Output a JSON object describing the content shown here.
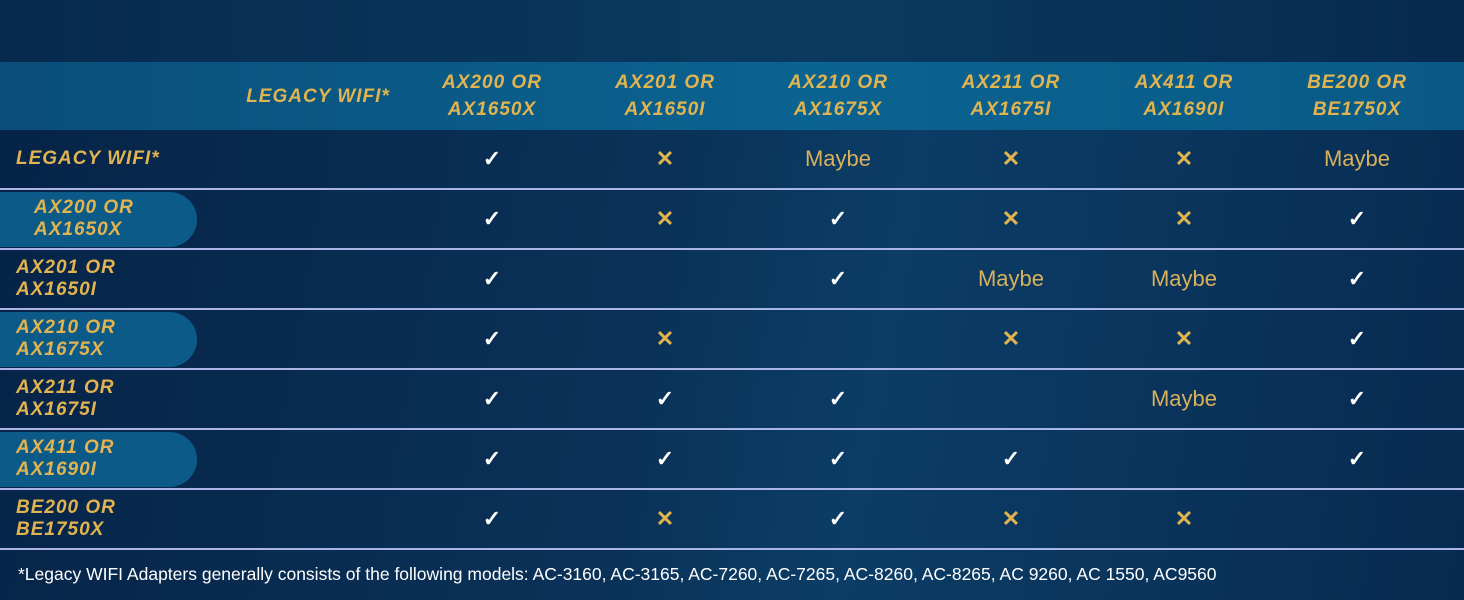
{
  "colors": {
    "accent_gold": "#e2b44f",
    "header_band": "#0b6390",
    "background": "#0a3258",
    "divider": "#aab4e6",
    "check": "#ffffff"
  },
  "columns": [
    "LEGACY WIFI*",
    "AX200 OR AX1650X",
    "AX201 OR AX1650I",
    "AX210 OR AX1675X",
    "AX211 OR AX1675I",
    "AX411 OR AX1690I",
    "BE200 OR BE1750X"
  ],
  "rows": [
    {
      "label": "LEGACY WIFI*",
      "highlight": false,
      "cells": [
        "",
        "check",
        "cross",
        "Maybe",
        "cross",
        "cross",
        "Maybe"
      ]
    },
    {
      "label": "AX200 OR AX1650X",
      "highlight": true,
      "cells": [
        "",
        "check",
        "cross",
        "check",
        "cross",
        "cross",
        "check"
      ]
    },
    {
      "label": "AX201 OR AX1650I",
      "highlight": false,
      "cells": [
        "",
        "check",
        "",
        "check",
        "Maybe",
        "Maybe",
        "check"
      ]
    },
    {
      "label": "AX210 OR AX1675X",
      "highlight": true,
      "cells": [
        "",
        "check",
        "cross",
        "",
        "cross",
        "cross",
        "check"
      ]
    },
    {
      "label": "AX211 OR AX1675I",
      "highlight": false,
      "cells": [
        "",
        "check",
        "check",
        "check",
        "",
        "Maybe",
        "check"
      ]
    },
    {
      "label": "AX411 OR AX1690I",
      "highlight": true,
      "cells": [
        "",
        "check",
        "check",
        "check",
        "check",
        "",
        "check"
      ]
    },
    {
      "label": "BE200 OR BE1750X",
      "highlight": false,
      "cells": [
        "",
        "check",
        "cross",
        "check",
        "cross",
        "cross",
        ""
      ]
    }
  ],
  "icons": {
    "check": "check-icon",
    "cross": "cross-icon"
  },
  "footnote": "*Legacy WIFI Adapters generally consists of the following models: AC-3160, AC-3165, AC-7260, AC-7265, AC-8260, AC-8265, AC 9260, AC 1550, AC9560"
}
